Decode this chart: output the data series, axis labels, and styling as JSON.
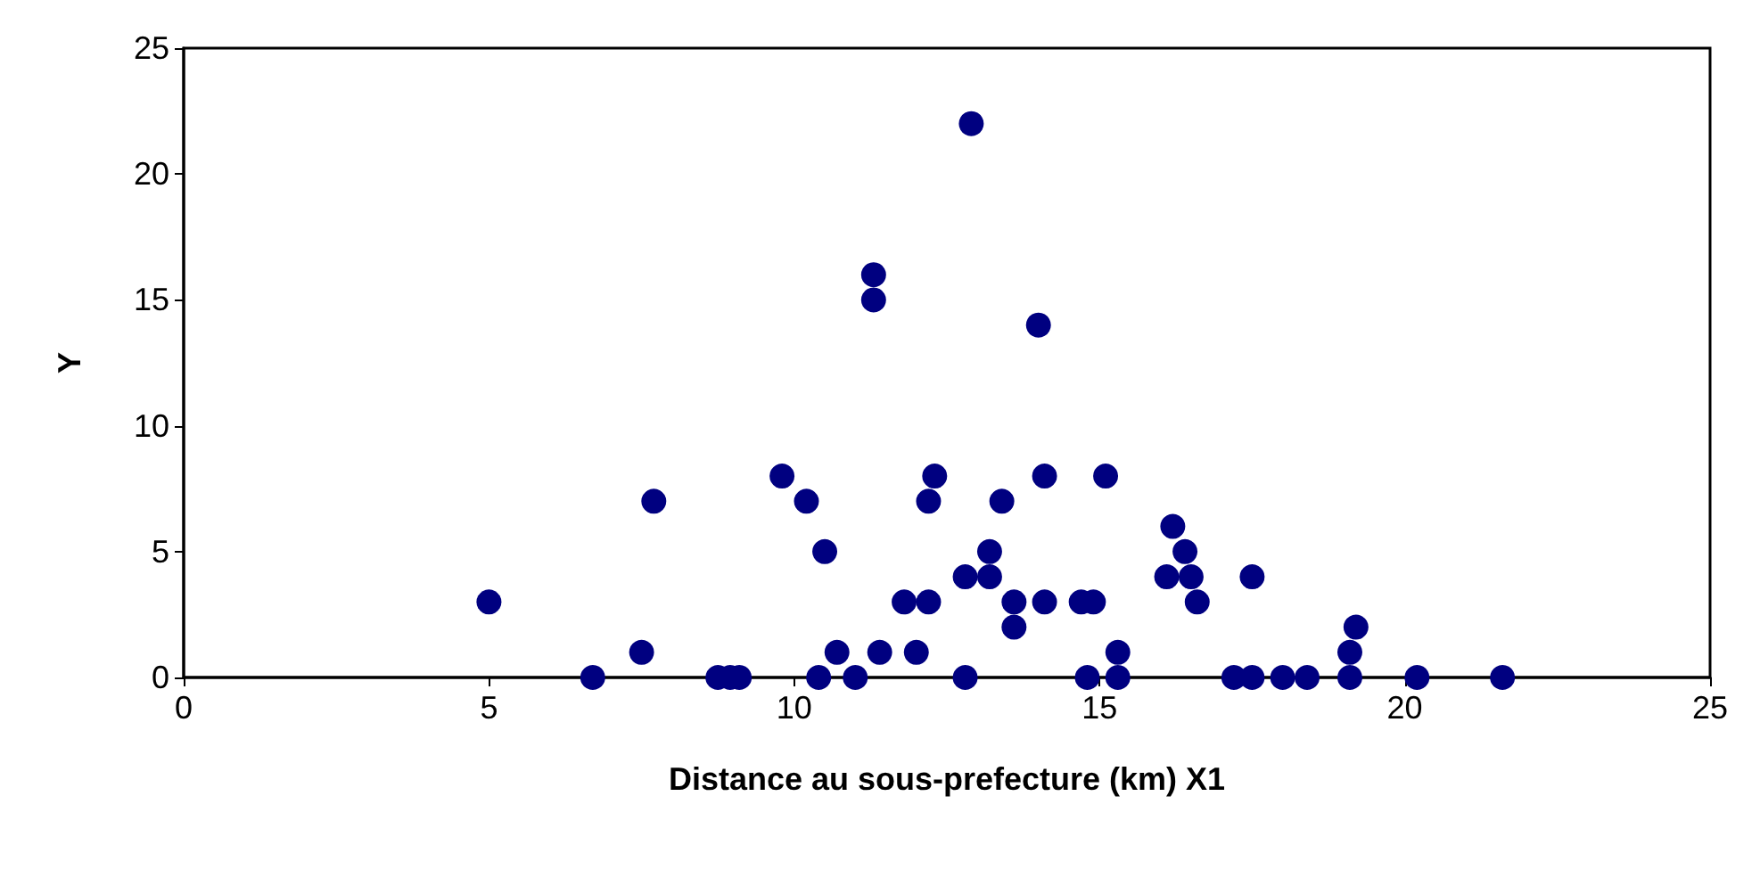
{
  "chart_data": {
    "type": "scatter",
    "xlabel": "Distance au sous-prefecture (km) X1",
    "ylabel": "Y",
    "x": [
      5,
      7.5,
      7.7,
      6.7,
      8.75,
      8.95,
      9.1,
      9.8,
      10.2,
      10.4,
      10.5,
      10.7,
      11,
      11.3,
      11.3,
      11.4,
      11.8,
      12,
      12.2,
      12.2,
      12.3,
      12.8,
      12.8,
      12.9,
      13.2,
      13.2,
      13.4,
      13.6,
      13.6,
      14,
      14.1,
      14.1,
      14.7,
      14.8,
      14.9,
      15.1,
      15.3,
      15.3,
      16.1,
      16.2,
      16.4,
      16.5,
      16.6,
      17.2,
      17.5,
      17.5,
      18,
      18.4,
      19.1,
      19.1,
      19.2,
      20.2,
      21.6
    ],
    "series": [
      {
        "color": "#000080",
        "values": [
          3,
          1,
          7,
          0,
          0,
          0,
          0,
          8,
          7,
          0,
          5,
          1,
          0,
          16,
          15,
          1,
          3,
          1,
          3,
          7,
          8,
          0,
          4,
          22,
          5,
          4,
          7,
          3,
          2,
          14,
          8,
          3,
          3,
          0,
          3,
          8,
          1,
          0,
          4,
          6,
          5,
          4,
          3,
          0,
          4,
          0,
          0,
          0,
          1,
          0,
          2,
          0,
          0
        ]
      }
    ],
    "xlim": [
      0,
      25
    ],
    "xticks": [
      0,
      5,
      10,
      15,
      20,
      25
    ],
    "ylim": [
      0,
      25
    ],
    "yticks": [
      0,
      5,
      10,
      15,
      20,
      25
    ],
    "grid": false,
    "marker": "circle"
  }
}
